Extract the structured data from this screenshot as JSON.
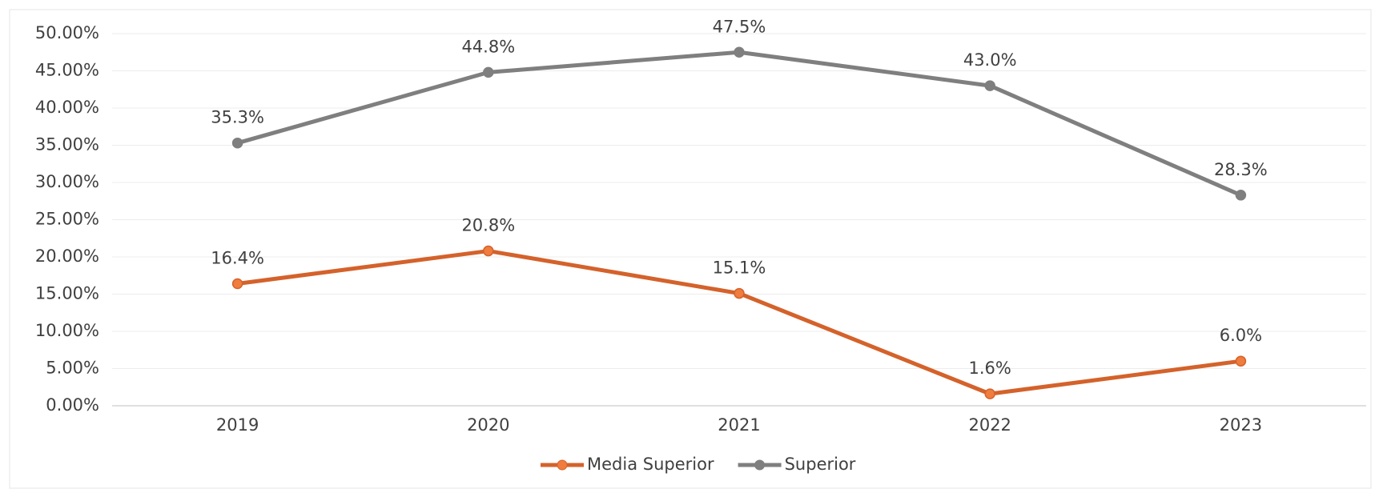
{
  "chart_data": {
    "type": "line",
    "categories": [
      "2019",
      "2020",
      "2021",
      "2022",
      "2023"
    ],
    "series": [
      {
        "name": "Media Superior",
        "color": "#d4622b",
        "values": [
          16.4,
          20.8,
          15.1,
          1.6,
          6.0
        ],
        "value_labels": [
          "16.4%",
          "20.8%",
          "15.1%",
          "1.6%",
          "6.0%"
        ]
      },
      {
        "name": "Superior",
        "color": "#7f7f7f",
        "values": [
          35.3,
          44.8,
          47.5,
          43.0,
          28.3
        ],
        "value_labels": [
          "35.3%",
          "44.8%",
          "47.5%",
          "43.0%",
          "28.3%"
        ]
      }
    ],
    "ylim": [
      0,
      50
    ],
    "yticks": [
      {
        "value": 0,
        "label": "0.00%"
      },
      {
        "value": 5,
        "label": "5.00%"
      },
      {
        "value": 10,
        "label": "10.00%"
      },
      {
        "value": 15,
        "label": "15.00%"
      },
      {
        "value": 20,
        "label": "20.00%"
      },
      {
        "value": 25,
        "label": "25.00%"
      },
      {
        "value": 30,
        "label": "30.00%"
      },
      {
        "value": 35,
        "label": "35.00%"
      },
      {
        "value": 40,
        "label": "40.00%"
      },
      {
        "value": 45,
        "label": "45.00%"
      },
      {
        "value": 50,
        "label": "50.00%"
      }
    ],
    "grid": true,
    "legend": "bottom"
  }
}
